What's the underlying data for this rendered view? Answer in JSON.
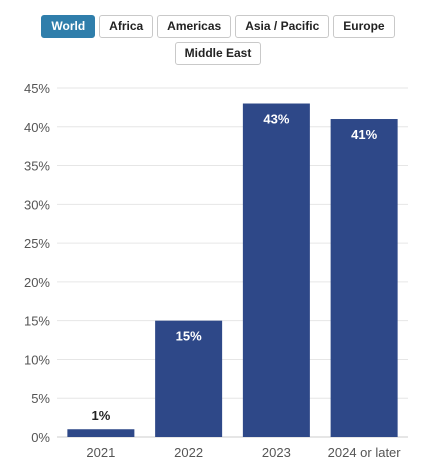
{
  "filters": {
    "regions": [
      "World",
      "Africa",
      "Americas",
      "Asia / Pacific",
      "Europe",
      "Middle East"
    ],
    "selected": "World"
  },
  "colors": {
    "bar": "#2e4888",
    "tab_active": "#2f7eab",
    "grid": "#e6e6e6",
    "axis_text": "#555555"
  },
  "chart_data": {
    "type": "bar",
    "categories": [
      "2021",
      "2022",
      "2023",
      "2024 or later"
    ],
    "values": [
      1,
      15,
      43,
      41
    ],
    "data_labels": [
      "1%",
      "15%",
      "43%",
      "41%"
    ],
    "yticks": [
      0,
      5,
      10,
      15,
      20,
      25,
      30,
      35,
      40,
      45
    ],
    "ytick_labels": [
      "0%",
      "5%",
      "10%",
      "15%",
      "20%",
      "25%",
      "30%",
      "35%",
      "40%",
      "45%"
    ],
    "ylim": [
      0,
      45
    ],
    "grid": true
  }
}
